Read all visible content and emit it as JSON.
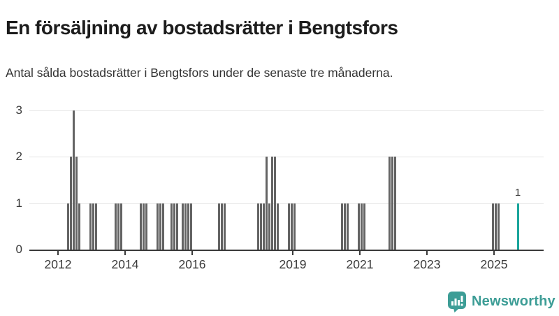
{
  "header": {
    "title": "En försäljning av bostadsrätter i Bengtsfors",
    "subtitle": "Antal sålda bostadsrätter i Bengtsfors under de senaste tre månaderna."
  },
  "footer": {
    "brand": "Newsworthy",
    "brand_color": "#3d9d96",
    "logo_icon": "bar-chart-speech-bubble-icon"
  },
  "chart_data": {
    "type": "bar",
    "title": "En försäljning av bostadsrätter i Bengtsfors",
    "subtitle": "Antal sålda bostadsrätter i Bengtsfors under de senaste tre månaderna.",
    "grid": true,
    "legend": "none",
    "ylim": [
      0,
      3
    ],
    "y_ticks": [
      0,
      1,
      2,
      3
    ],
    "x_tick_years": [
      2012,
      2014,
      2016,
      2019,
      2021,
      2023,
      2025
    ],
    "x_range_years": [
      2011.15,
      2026.45
    ],
    "colors": {
      "bar": "#646464",
      "highlight": "#19a49b",
      "grid": "#e4e4e4",
      "axis": "#3a3a3a",
      "tick_text": "#3a3a3a"
    },
    "annotation": {
      "text": "1",
      "month": "2025-09"
    },
    "points": [
      {
        "m": "2012-04",
        "v": 1
      },
      {
        "m": "2012-05",
        "v": 2
      },
      {
        "m": "2012-06",
        "v": 3
      },
      {
        "m": "2012-07",
        "v": 2
      },
      {
        "m": "2012-08",
        "v": 1
      },
      {
        "m": "2012-12",
        "v": 1
      },
      {
        "m": "2013-01",
        "v": 1
      },
      {
        "m": "2013-02",
        "v": 1
      },
      {
        "m": "2013-09",
        "v": 1
      },
      {
        "m": "2013-10",
        "v": 1
      },
      {
        "m": "2013-11",
        "v": 1
      },
      {
        "m": "2014-06",
        "v": 1
      },
      {
        "m": "2014-07",
        "v": 1
      },
      {
        "m": "2014-08",
        "v": 1
      },
      {
        "m": "2014-12",
        "v": 1
      },
      {
        "m": "2015-01",
        "v": 1
      },
      {
        "m": "2015-02",
        "v": 1
      },
      {
        "m": "2015-05",
        "v": 1
      },
      {
        "m": "2015-06",
        "v": 1
      },
      {
        "m": "2015-07",
        "v": 1
      },
      {
        "m": "2015-09",
        "v": 1
      },
      {
        "m": "2015-10",
        "v": 1
      },
      {
        "m": "2015-11",
        "v": 1
      },
      {
        "m": "2015-12",
        "v": 1
      },
      {
        "m": "2016-10",
        "v": 1
      },
      {
        "m": "2016-11",
        "v": 1
      },
      {
        "m": "2016-12",
        "v": 1
      },
      {
        "m": "2017-12",
        "v": 1
      },
      {
        "m": "2018-01",
        "v": 1
      },
      {
        "m": "2018-02",
        "v": 1
      },
      {
        "m": "2018-03",
        "v": 2
      },
      {
        "m": "2018-04",
        "v": 1
      },
      {
        "m": "2018-05",
        "v": 2
      },
      {
        "m": "2018-06",
        "v": 2
      },
      {
        "m": "2018-07",
        "v": 1
      },
      {
        "m": "2018-11",
        "v": 1
      },
      {
        "m": "2018-12",
        "v": 1
      },
      {
        "m": "2019-01",
        "v": 1
      },
      {
        "m": "2020-06",
        "v": 1
      },
      {
        "m": "2020-07",
        "v": 1
      },
      {
        "m": "2020-08",
        "v": 1
      },
      {
        "m": "2020-12",
        "v": 1
      },
      {
        "m": "2021-01",
        "v": 1
      },
      {
        "m": "2021-02",
        "v": 1
      },
      {
        "m": "2021-11",
        "v": 2
      },
      {
        "m": "2021-12",
        "v": 2
      },
      {
        "m": "2022-01",
        "v": 2
      },
      {
        "m": "2024-12",
        "v": 1
      },
      {
        "m": "2025-01",
        "v": 1
      },
      {
        "m": "2025-02",
        "v": 1
      },
      {
        "m": "2025-09",
        "v": 1,
        "highlight": true,
        "label": "1"
      }
    ]
  }
}
